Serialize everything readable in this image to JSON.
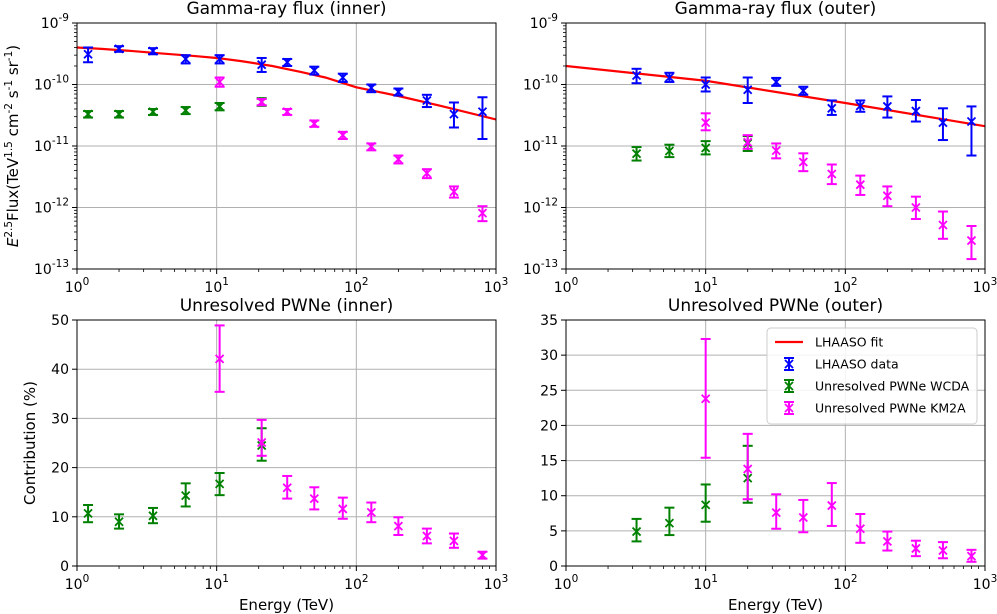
{
  "colors": {
    "fit": "#ff0000",
    "lhaaso": "#0000ff",
    "wcda": "#008000",
    "km2a": "#ff00ff",
    "grid": "#b0b0b0"
  },
  "chart_data": [
    {
      "id": "flux_inner",
      "type": "scatter",
      "title": "Gamma-ray flux (inner)",
      "xlabel": "",
      "ylabel": "E^2.5Flux(TeV^1.5 cm^-2 s^-1 sr^-1)",
      "xscale": "log",
      "yscale": "log",
      "xlim": [
        1,
        1000
      ],
      "ylim": [
        1e-13,
        1e-09
      ],
      "xticks": [
        "10^0",
        "10^1",
        "10^2",
        "10^3"
      ],
      "yticks": [
        "10^-13",
        "10^-12",
        "10^-11",
        "10^-10",
        "10^-9"
      ],
      "grid": true,
      "series": [
        {
          "name": "LHAASO fit",
          "kind": "line",
          "color": "#ff0000",
          "x": [
            1,
            1.5,
            2.5,
            4,
            7,
            10,
            15,
            25,
            40,
            60,
            100,
            200,
            400,
            1000
          ],
          "y": [
            4e-10,
            3.8e-10,
            3.5e-10,
            3.2e-10,
            2.9e-10,
            2.7e-10,
            2.4e-10,
            2e-10,
            1.6e-10,
            1.3e-10,
            9e-11,
            6.5e-11,
            4.5e-11,
            2.7e-11
          ]
        },
        {
          "name": "LHAASO data",
          "kind": "points",
          "color": "#0000ff",
          "x": [
            1.2,
            2.0,
            3.5,
            6.0,
            10.5,
            21,
            32,
            50,
            80,
            128,
            200,
            320,
            500,
            800
          ],
          "y": [
            3.1e-10,
            3.8e-10,
            3.5e-10,
            2.6e-10,
            2.6e-10,
            2.1e-10,
            2.3e-10,
            1.7e-10,
            1.3e-10,
            8.8e-11,
            7.6e-11,
            5.5e-11,
            3.3e-11,
            3.6e-11
          ],
          "ylo": [
            2.3e-10,
            3.4e-10,
            3.1e-10,
            2.2e-10,
            2.2e-10,
            1.6e-10,
            2e-10,
            1.45e-10,
            1.1e-10,
            7.5e-11,
            6.6e-11,
            4.3e-11,
            2e-11,
            1.3e-11
          ],
          "yhi": [
            4e-10,
            4.2e-10,
            3.9e-10,
            3e-10,
            3e-10,
            2.7e-10,
            2.6e-10,
            1.95e-10,
            1.5e-10,
            1e-10,
            8.6e-11,
            6.8e-11,
            5.1e-11,
            6.2e-11
          ]
        },
        {
          "name": "Unresolved PWNe WCDA",
          "kind": "points",
          "color": "#008000",
          "x": [
            1.2,
            2.0,
            3.5,
            6.0,
            10.5,
            21
          ],
          "y": [
            3.3e-11,
            3.3e-11,
            3.6e-11,
            3.8e-11,
            4.4e-11,
            5.2e-11
          ],
          "ylo": [
            2.9e-11,
            2.9e-11,
            3.2e-11,
            3.3e-11,
            3.8e-11,
            4.5e-11
          ],
          "yhi": [
            3.7e-11,
            3.7e-11,
            4e-11,
            4.3e-11,
            5e-11,
            6e-11
          ]
        },
        {
          "name": "Unresolved PWNe KM2A",
          "kind": "points",
          "color": "#ff00ff",
          "x": [
            10.5,
            21,
            32,
            50,
            80,
            128,
            200,
            320,
            500,
            800
          ],
          "y": [
            1.1e-10,
            5.2e-11,
            3.6e-11,
            2.3e-11,
            1.5e-11,
            9.8e-12,
            6.1e-12,
            3.6e-12,
            1.8e-12,
            8.1e-13
          ],
          "ylo": [
            9.2e-11,
            4.6e-11,
            3.2e-11,
            2.05e-11,
            1.3e-11,
            8.5e-12,
            5.2e-12,
            3e-12,
            1.45e-12,
            6e-13
          ],
          "yhi": [
            1.3e-10,
            5.8e-11,
            4e-11,
            2.6e-11,
            1.7e-11,
            1.1e-11,
            7e-12,
            4.2e-12,
            2.2e-12,
            1.05e-12
          ]
        }
      ]
    },
    {
      "id": "flux_outer",
      "type": "scatter",
      "title": "Gamma-ray flux (outer)",
      "xlabel": "",
      "ylabel": "",
      "xscale": "log",
      "yscale": "log",
      "xlim": [
        1,
        1000
      ],
      "ylim": [
        1e-13,
        1e-09
      ],
      "xticks": [
        "10^0",
        "10^1",
        "10^2",
        "10^3"
      ],
      "yticks": [
        "10^-13",
        "10^-12",
        "10^-11",
        "10^-10",
        "10^-9"
      ],
      "grid": true,
      "series": [
        {
          "name": "LHAASO fit",
          "kind": "line",
          "color": "#ff0000",
          "x": [
            1,
            10,
            100,
            1000
          ],
          "y": [
            2e-10,
            1.15e-10,
            5e-11,
            2.1e-11
          ]
        },
        {
          "name": "LHAASO data",
          "kind": "points",
          "color": "#0000ff",
          "x": [
            3.2,
            5.5,
            10,
            20,
            32,
            50,
            80,
            128,
            200,
            320,
            500,
            800
          ],
          "y": [
            1.4e-10,
            1.3e-10,
            1e-10,
            8.2e-11,
            1.1e-10,
            7.9e-11,
            4.1e-11,
            4.5e-11,
            4.4e-11,
            3.7e-11,
            2.4e-11,
            2.5e-11
          ],
          "ylo": [
            1.05e-10,
            1.1e-10,
            7.7e-11,
            5e-11,
            9.5e-11,
            6.8e-11,
            3.2e-11,
            3.6e-11,
            2.9e-11,
            2.5e-11,
            1.25e-11,
            7e-12
          ],
          "yhi": [
            1.8e-10,
            1.55e-10,
            1.3e-10,
            1.3e-10,
            1.28e-10,
            9.2e-11,
            5.5e-11,
            5.5e-11,
            6.4e-11,
            5.6e-11,
            4.1e-11,
            4.4e-11
          ]
        },
        {
          "name": "Unresolved PWNe WCDA",
          "kind": "points",
          "color": "#008000",
          "x": [
            3.2,
            5.5,
            10,
            20
          ],
          "y": [
            7.5e-12,
            8.3e-12,
            9.3e-12,
            1.1e-11
          ],
          "ylo": [
            5.8e-12,
            6.6e-12,
            7.3e-12,
            8.3e-12
          ],
          "yhi": [
            9.6e-12,
            1.05e-11,
            1.2e-11,
            1.45e-11
          ]
        },
        {
          "name": "Unresolved PWNe KM2A",
          "kind": "points",
          "color": "#ff00ff",
          "x": [
            10,
            20,
            32,
            50,
            80,
            128,
            200,
            320,
            500,
            800
          ],
          "y": [
            2.4e-11,
            1.15e-11,
            8.4e-12,
            5.5e-12,
            3.5e-12,
            2.35e-12,
            1.55e-12,
            1e-12,
            5.2e-13,
            2.9e-13
          ],
          "ylo": [
            1.8e-11,
            9e-12,
            6.3e-12,
            3.9e-12,
            2.4e-12,
            1.6e-12,
            1.05e-12,
            6.5e-13,
            3.1e-13,
            1.45e-13
          ],
          "yhi": [
            3.4e-11,
            1.5e-11,
            1.1e-11,
            7.6e-12,
            5e-12,
            3.3e-12,
            2.2e-12,
            1.5e-12,
            8.6e-13,
            5e-13
          ]
        }
      ]
    },
    {
      "id": "pwne_inner",
      "type": "scatter",
      "title": "Unresolved PWNe (inner)",
      "xlabel": "Energy (TeV)",
      "ylabel": "Contribution (%)",
      "xscale": "log",
      "yscale": "linear",
      "xlim": [
        1,
        1000
      ],
      "ylim": [
        0,
        50
      ],
      "xticks": [
        "10^0",
        "10^1",
        "10^2",
        "10^3"
      ],
      "yticks": [
        "0",
        "10",
        "20",
        "30",
        "40",
        "50"
      ],
      "grid": true,
      "series": [
        {
          "name": "Unresolved PWNe WCDA",
          "kind": "points",
          "color": "#008000",
          "x": [
            1.2,
            2.0,
            3.5,
            6.0,
            10.5,
            21
          ],
          "y": [
            10.7,
            9.0,
            10.2,
            14.3,
            16.7,
            24.5
          ],
          "ylo": [
            8.9,
            7.6,
            8.7,
            12.1,
            14.4,
            21.4
          ],
          "yhi": [
            12.4,
            10.5,
            11.8,
            16.8,
            18.9,
            28.0
          ]
        },
        {
          "name": "Unresolved PWNe KM2A",
          "kind": "points",
          "color": "#ff00ff",
          "x": [
            10.5,
            21,
            32,
            50,
            80,
            128,
            200,
            320,
            500,
            800
          ],
          "y": [
            42.1,
            25.1,
            15.9,
            13.7,
            11.6,
            10.9,
            8.1,
            6.1,
            5.1,
            2.2
          ],
          "ylo": [
            35.4,
            22.4,
            13.7,
            11.5,
            9.6,
            8.9,
            6.3,
            4.6,
            3.7,
            1.5
          ],
          "yhi": [
            48.9,
            29.7,
            18.3,
            16.0,
            13.9,
            12.9,
            9.9,
            7.6,
            6.6,
            2.9
          ]
        }
      ]
    },
    {
      "id": "pwne_outer",
      "type": "scatter",
      "title": "Unresolved PWNe (outer)",
      "xlabel": "Energy (TeV)",
      "ylabel": "",
      "xscale": "log",
      "yscale": "linear",
      "xlim": [
        1,
        1000
      ],
      "ylim": [
        0,
        35
      ],
      "xticks": [
        "10^0",
        "10^1",
        "10^2",
        "10^3"
      ],
      "yticks": [
        "0",
        "5",
        "10",
        "15",
        "20",
        "25",
        "30",
        "35"
      ],
      "grid": true,
      "legend_position": "top-right",
      "series": [
        {
          "name": "Unresolved PWNe WCDA",
          "kind": "points",
          "color": "#008000",
          "x": [
            3.2,
            5.5,
            10,
            20
          ],
          "y": [
            4.9,
            6.1,
            8.7,
            12.5
          ],
          "ylo": [
            3.5,
            4.4,
            6.3,
            9.0
          ],
          "yhi": [
            6.7,
            8.3,
            11.6,
            17.1
          ]
        },
        {
          "name": "Unresolved PWNe KM2A",
          "kind": "points",
          "color": "#ff00ff",
          "x": [
            10,
            20,
            32,
            50,
            80,
            128,
            200,
            320,
            500,
            800
          ],
          "y": [
            23.8,
            13.8,
            7.6,
            6.9,
            8.6,
            5.3,
            3.5,
            2.5,
            2.2,
            1.4
          ],
          "ylo": [
            15.4,
            9.5,
            5.3,
            4.8,
            5.7,
            3.3,
            2.2,
            1.4,
            1.1,
            0.6
          ],
          "yhi": [
            32.3,
            18.8,
            10.2,
            9.4,
            11.8,
            7.4,
            4.9,
            3.6,
            3.4,
            2.3
          ]
        }
      ]
    }
  ],
  "legend": [
    {
      "label": "LHAASO fit",
      "marker": "line",
      "color": "#ff0000"
    },
    {
      "label": "LHAASO data",
      "marker": "errorbar",
      "color": "#0000ff"
    },
    {
      "label": "Unresolved PWNe WCDA",
      "marker": "errorbar",
      "color": "#008000"
    },
    {
      "label": "Unresolved PWNe KM2A",
      "marker": "errorbar",
      "color": "#ff00ff"
    }
  ]
}
